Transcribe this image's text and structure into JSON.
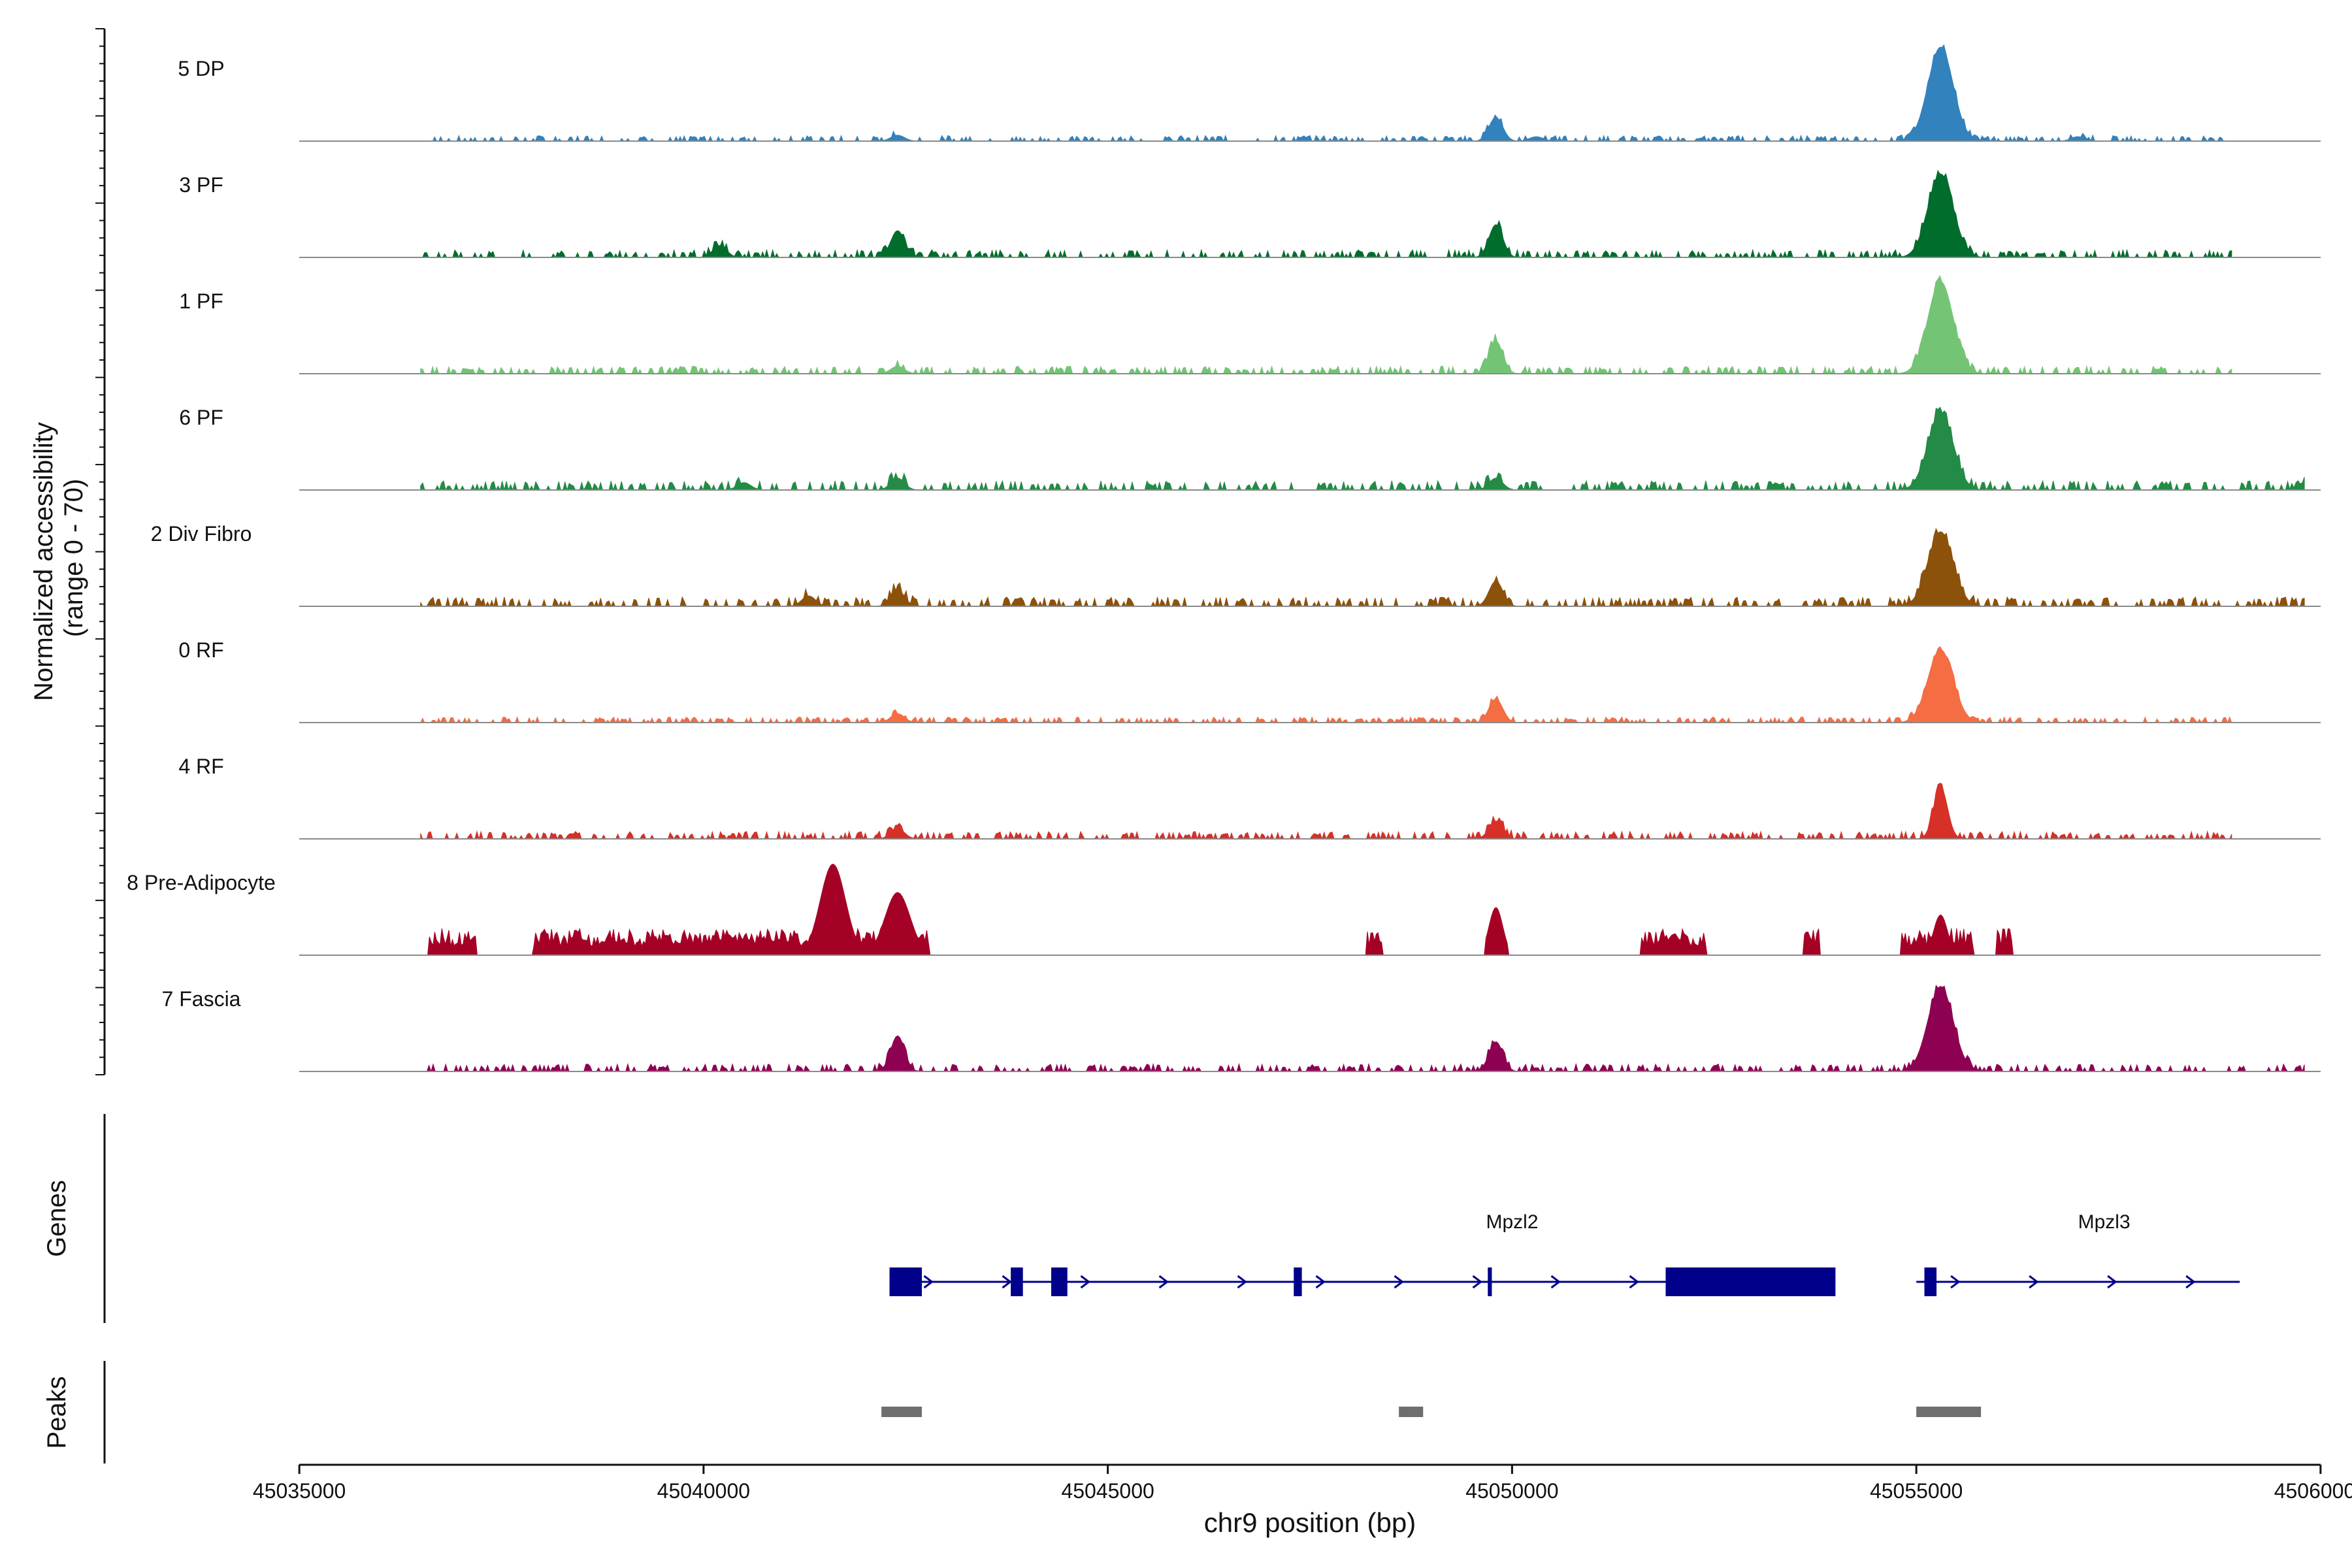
{
  "chart_data": {
    "type": "area",
    "title": "",
    "ylabel_lines": [
      "Normalized accessibility",
      "(range 0 - 70)"
    ],
    "xlabel": "chr9 position (bp)",
    "ymax": 70,
    "xlim": [
      45034999,
      45060001
    ],
    "xticks": [
      45035000,
      45040000,
      45045000,
      45050000,
      45055000,
      45060000
    ],
    "xtick_labels": [
      "45035000",
      "45040000",
      "45045000",
      "45050000",
      "45055000",
      "45060000"
    ],
    "region": {
      "start": 45035000,
      "end": 45060000
    },
    "tracks": [
      {
        "name": "5 DP",
        "color": "#3182bd",
        "peaks": [
          [
            45049800,
            16
          ],
          [
            45042400,
            4
          ],
          [
            45050300,
            3
          ],
          [
            45057000,
            3
          ],
          [
            45055300,
            63
          ]
        ],
        "baseline": 1.5,
        "range": [
          45036500,
          45058900
        ]
      },
      {
        "name": "3 PF",
        "color": "#006d2c",
        "peaks": [
          [
            45040200,
            8
          ],
          [
            45042400,
            18
          ],
          [
            45049800,
            22
          ],
          [
            45055300,
            56
          ]
        ],
        "baseline": 2,
        "range": [
          45036500,
          45058900
        ]
      },
      {
        "name": "1 PF",
        "color": "#74c476",
        "peaks": [
          [
            45042400,
            5
          ],
          [
            45049800,
            22
          ],
          [
            45055300,
            62
          ]
        ],
        "baseline": 2,
        "range": [
          45036500,
          45058900
        ]
      },
      {
        "name": "6 PF",
        "color": "#238b45",
        "peaks": [
          [
            45040500,
            5
          ],
          [
            45042400,
            8
          ],
          [
            45049800,
            8
          ],
          [
            45055300,
            52
          ],
          [
            45059800,
            5
          ]
        ],
        "baseline": 2.5,
        "range": [
          45036500,
          45059800
        ]
      },
      {
        "name": "2 Div Fibro",
        "color": "#8c510a",
        "peaks": [
          [
            45041300,
            7
          ],
          [
            45042400,
            11
          ],
          [
            45049800,
            17
          ],
          [
            45055300,
            50
          ]
        ],
        "baseline": 2.5,
        "range": [
          45036500,
          45059800
        ]
      },
      {
        "name": "0 RF",
        "color": "#f46d43",
        "peaks": [
          [
            45042400,
            6
          ],
          [
            45049800,
            16
          ],
          [
            45055300,
            49
          ]
        ],
        "baseline": 1.5,
        "range": [
          45036500,
          45058900
        ]
      },
      {
        "name": "4 RF",
        "color": "#d73027",
        "peaks": [
          [
            45042400,
            7
          ],
          [
            45049800,
            12
          ],
          [
            45055300,
            35
          ]
        ],
        "baseline": 2,
        "range": [
          45036500,
          45058900
        ]
      },
      {
        "name": "8 Pre-Adipocyte",
        "color": "#a50026",
        "peaks": [
          [
            45040300,
            14
          ],
          [
            45041600,
            61
          ],
          [
            45042400,
            42
          ],
          [
            45049800,
            32
          ],
          [
            45052000,
            14
          ],
          [
            45055300,
            27
          ]
        ],
        "baseline": 0,
        "range": [
          45036500,
          45056200
        ]
      },
      {
        "name": "7 Fascia",
        "color": "#8e0152",
        "peaks": [
          [
            45042400,
            24
          ],
          [
            45049800,
            20
          ],
          [
            45055300,
            57
          ]
        ],
        "baseline": 2,
        "range": [
          45036500,
          45059800
        ]
      }
    ],
    "genes_label": "Genes",
    "peaks_label": "Peaks",
    "genes": [
      {
        "name": "Mpzl2",
        "start": 45042300,
        "end": 45054000,
        "exons": [
          [
            45042300,
            45042700
          ],
          [
            45043800,
            45043950
          ],
          [
            45044300,
            45044500
          ],
          [
            45047300,
            45047400
          ],
          [
            45049700,
            45049750
          ],
          [
            45051900,
            45054000
          ]
        ]
      },
      {
        "name": "Mpzl3",
        "start": 45055000,
        "end": 45059000,
        "exons": [
          [
            45055100,
            45055250
          ]
        ]
      }
    ],
    "peak_regions": [
      [
        45042200,
        45042700
      ],
      [
        45048600,
        45048900
      ],
      [
        45055000,
        45055800
      ]
    ]
  }
}
